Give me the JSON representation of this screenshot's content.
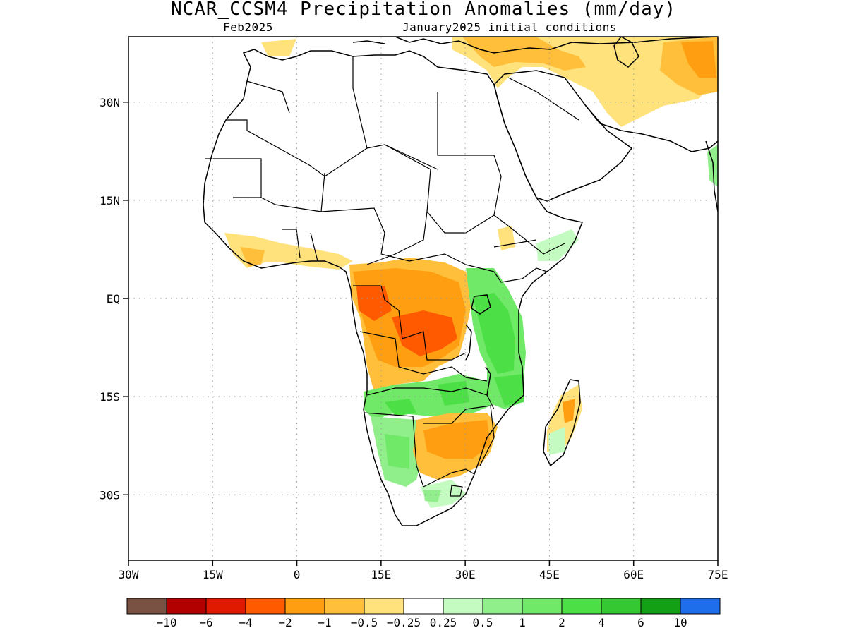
{
  "title": "NCAR_CCSM4 Precipitation Anomalies (mm/day)",
  "subtitle_left": "Feb2025",
  "subtitle_right": "January2025 initial conditions",
  "axes": {
    "x_ticks": [
      "30W",
      "15W",
      "0",
      "15E",
      "30E",
      "45E",
      "60E",
      "75E"
    ],
    "y_ticks": [
      "30N",
      "15N",
      "EQ",
      "15S",
      "30S"
    ],
    "lon_range": [
      -30,
      75
    ],
    "lat_range": [
      -40,
      40
    ],
    "grid": "dotted"
  },
  "legend": {
    "placement": "bottom",
    "colors": [
      "#7a5244",
      "#b20000",
      "#e01a00",
      "#ff5a00",
      "#ff9e10",
      "#ffbf3a",
      "#ffe27c",
      "#ffffff",
      "#c4fbc0",
      "#90ef8a",
      "#70e868",
      "#4ce046",
      "#36c832",
      "#14a014",
      "#1e6eec"
    ],
    "labels": [
      "-10",
      "-6",
      "-4",
      "-2",
      "-1",
      "-0.5",
      "-0.25",
      "0.25",
      "0.5",
      "1",
      "2",
      "4",
      "6",
      "10"
    ]
  },
  "anomaly_regions": [
    {
      "region": "Gabon / Congo / DRC",
      "category": "-4 to -1"
    },
    {
      "region": "Angola / southern DRC",
      "category": "-2 to -0.5"
    },
    {
      "region": "Zambia / Angola border",
      "category": "0.5 to 2"
    },
    {
      "region": "Tanzania / Uganda / Kenya",
      "category": "1 to 4"
    },
    {
      "region": "Mozambique / Zimbabwe",
      "category": "-2 to -0.5"
    },
    {
      "region": "Namibia / Botswana",
      "category": "0.5 to 2"
    },
    {
      "region": "Madagascar",
      "category": "-1 to 1"
    },
    {
      "region": "Middle East / Iran",
      "category": "-1 to -0.25"
    },
    {
      "region": "West Africa coast",
      "category": "-1 to -0.25"
    }
  ]
}
